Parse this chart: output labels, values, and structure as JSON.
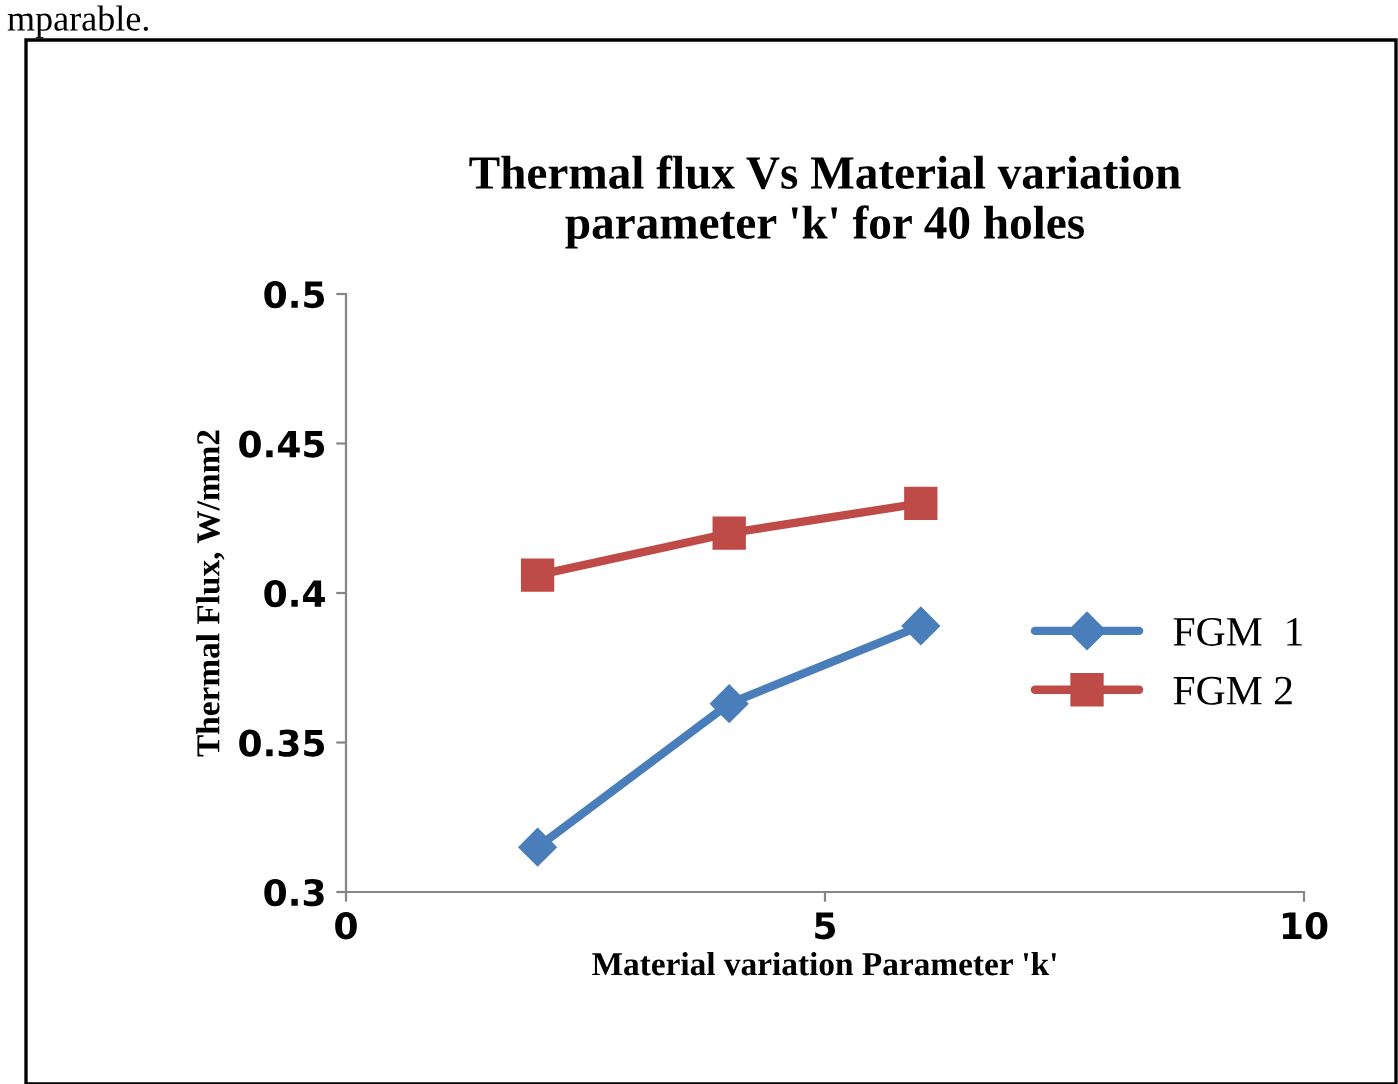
{
  "chart_data": {
    "type": "line",
    "title": "Thermal flux Vs Material variation\nparameter 'k' for 40 holes",
    "xlabel": "Material variation Parameter 'k'",
    "ylabel": "Thermal Flux, W/mm2",
    "annotations": [
      "mparable."
    ],
    "series": [
      {
        "name": "FGM  1",
        "color": "#4a7ebb",
        "marker": "diamond",
        "x": [
          2,
          4,
          6
        ],
        "values": [
          0.315,
          0.363,
          0.389
        ]
      },
      {
        "name": "FGM 2",
        "color": "#be4b48",
        "marker": "square",
        "x": [
          2,
          4,
          6
        ],
        "values": [
          0.406,
          0.42,
          0.43
        ]
      }
    ],
    "xlim": [
      0,
      10
    ],
    "xticks": [
      0,
      5,
      10
    ],
    "ylim": [
      0.3,
      0.5
    ],
    "yticks": [
      0.3,
      0.35,
      0.4,
      0.45,
      0.5
    ],
    "grid": false,
    "legend": "right",
    "line_style": "solid"
  }
}
